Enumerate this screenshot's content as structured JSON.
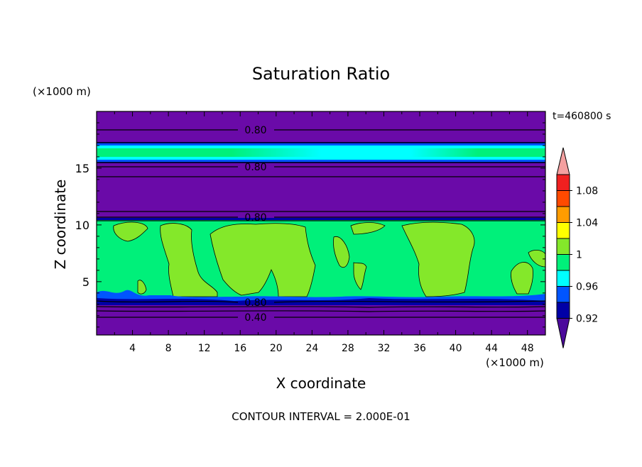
{
  "chart_data": {
    "type": "heatmap",
    "title": "Saturation Ratio",
    "xlabel": "X coordinate",
    "ylabel": "Z coordinate",
    "x_unit": "(×1000 m)",
    "y_unit": "(×1000 m)",
    "time_label": "t=460800 s",
    "footer": "CONTOUR INTERVAL = 2.000E-01",
    "xlim": [
      0,
      50
    ],
    "ylim": [
      0.3,
      20
    ],
    "x_ticks": [
      "4",
      "8",
      "12",
      "16",
      "20",
      "24",
      "28",
      "32",
      "36",
      "40",
      "44",
      "48"
    ],
    "y_ticks": [
      "5",
      "10",
      "15"
    ],
    "contour_labels": [
      "0.80",
      "0.80",
      "0.80",
      "0.80",
      "0.40"
    ],
    "colorbar": {
      "labels": [
        "1.08",
        "1.04",
        "1",
        "0.96",
        "0.92"
      ],
      "colors": [
        "#4c0a9c",
        "#0000a6",
        "#0055ff",
        "#00ffff",
        "#00f07a",
        "#84e82a",
        "#ffff00",
        "#ff9c00",
        "#ff4a00",
        "#f02020",
        "#f4a0a0"
      ]
    },
    "layers": [
      {
        "z_range": [
          0.3,
          3.3
        ],
        "value_class": "below 0.92",
        "color": "#6a0aa8"
      },
      {
        "z_range": [
          3.3,
          10.3
        ],
        "value_class": "0.98-1.00",
        "color": "#00f07a"
      },
      {
        "z_range": [
          10.3,
          15.3
        ],
        "value_class": "below 0.92",
        "color": "#6a0aa8"
      },
      {
        "z_range": [
          15.3,
          17.3
        ],
        "value_class": "0.94-1.00",
        "color": "#00ffff"
      },
      {
        "z_range": [
          17.3,
          20
        ],
        "value_class": "below 0.92",
        "color": "#6a0aa8"
      }
    ]
  }
}
